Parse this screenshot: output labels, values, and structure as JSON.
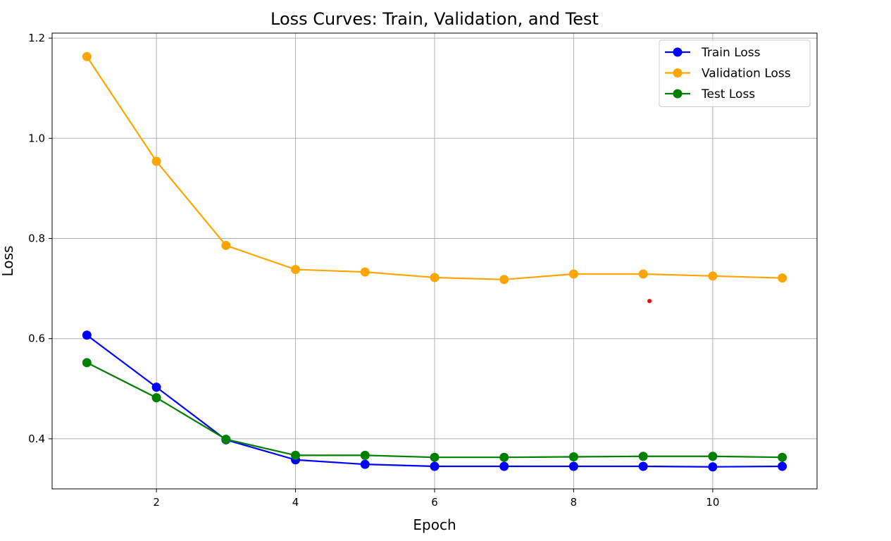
{
  "chart_data": {
    "type": "line",
    "title": "Loss Curves: Train, Validation, and Test",
    "xlabel": "Epoch",
    "ylabel": "Loss",
    "xlim": [
      0.5,
      11.5
    ],
    "ylim": [
      0.3,
      1.21
    ],
    "xticks": [
      2,
      4,
      6,
      8,
      10
    ],
    "yticks": [
      0.4,
      0.6,
      0.8,
      1.0,
      1.2
    ],
    "xtick_labels": [
      "2",
      "4",
      "6",
      "8",
      "10"
    ],
    "ytick_labels": [
      "0.4",
      "0.6",
      "0.8",
      "1.0",
      "1.2"
    ],
    "grid": true,
    "legend_position": "top-right",
    "x": [
      1,
      2,
      3,
      4,
      5,
      6,
      7,
      8,
      9,
      10,
      11
    ],
    "series": [
      {
        "name": "Train Loss",
        "color": "#0000ff",
        "values": [
          0.607,
          0.503,
          0.398,
          0.358,
          0.349,
          0.345,
          0.345,
          0.345,
          0.345,
          0.344,
          0.345
        ]
      },
      {
        "name": "Validation Loss",
        "color": "#ffa500",
        "values": [
          1.163,
          0.954,
          0.786,
          0.738,
          0.733,
          0.722,
          0.718,
          0.729,
          0.729,
          0.725,
          0.721
        ]
      },
      {
        "name": "Test Loss",
        "color": "#008000",
        "values": [
          0.552,
          0.482,
          0.399,
          0.367,
          0.367,
          0.363,
          0.363,
          0.364,
          0.365,
          0.365,
          0.363
        ]
      }
    ],
    "annotation_marker": {
      "x": 9.09,
      "y": 0.675,
      "color": "#ff0000"
    }
  }
}
